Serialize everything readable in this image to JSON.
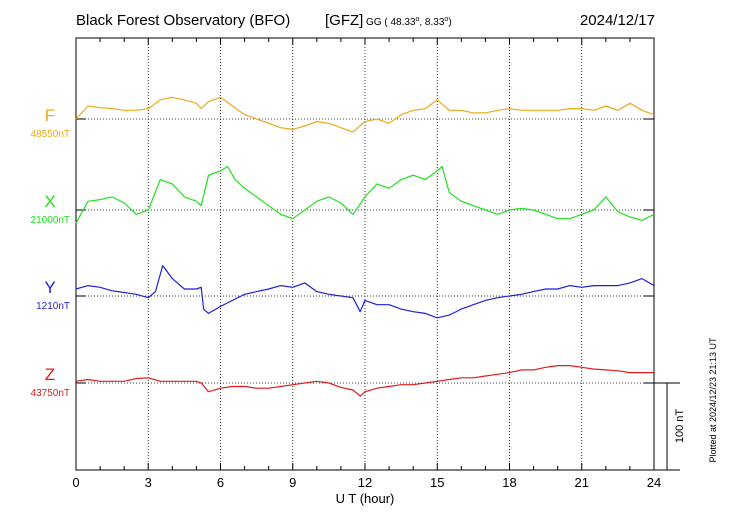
{
  "header": {
    "title": "Black Forest Observatory (BFO)",
    "agency": "[GFZ]",
    "coord_prefix": "GG ( 48.33",
    "coord_sep": ",    8.33",
    "coord_close": ")",
    "degree": "o",
    "date": "2024/12/17"
  },
  "footer": {
    "plotted": "Plotted at 2024/12/23 21:13 UT"
  },
  "chart_data": {
    "type": "line",
    "title": "Black Forest Observatory (BFO) [GFZ]",
    "xlabel": "U T (hour)",
    "xlim": [
      0,
      24
    ],
    "xticks": [
      0,
      3,
      6,
      9,
      12,
      15,
      18,
      21,
      24
    ],
    "xtick_labels": [
      "0",
      "3",
      "6",
      "9",
      "12",
      "15",
      "18",
      "21",
      "24"
    ],
    "grid": true,
    "scale_bar": {
      "value": 100,
      "label": "100 nT"
    },
    "series": [
      {
        "name": "F",
        "label": "F",
        "baseline_label": "48550nT",
        "color": "#f0a81c",
        "baseline": 48550,
        "x": [
          0,
          0.5,
          1,
          1.5,
          2,
          2.5,
          3,
          3.5,
          4,
          4.5,
          5,
          5.2,
          5.5,
          6,
          6.5,
          7,
          7.5,
          8,
          8.5,
          9,
          9.5,
          10,
          10.5,
          11,
          11.5,
          12,
          12.5,
          13,
          13.5,
          14,
          14.5,
          15,
          15.5,
          16,
          16.5,
          17,
          17.5,
          18,
          18.5,
          19,
          19.5,
          20,
          20.5,
          21,
          21.5,
          22,
          22.5,
          23,
          23.5,
          24
        ],
        "y": [
          48550,
          48565,
          48563,
          48562,
          48560,
          48560,
          48562,
          48572,
          48575,
          48572,
          48568,
          48562,
          48570,
          48575,
          48565,
          48555,
          48550,
          48545,
          48540,
          48538,
          48542,
          48547,
          48545,
          48540,
          48535,
          48547,
          48550,
          48545,
          48555,
          48560,
          48562,
          48572,
          48560,
          48560,
          48557,
          48557,
          48560,
          48562,
          48560,
          48560,
          48560,
          48560,
          48562,
          48562,
          48560,
          48565,
          48560,
          48568,
          48560,
          48555
        ]
      },
      {
        "name": "X",
        "label": "X",
        "baseline_label": "21000nT",
        "color": "#1fe01f",
        "baseline": 21000,
        "x": [
          0,
          0.5,
          1,
          1.5,
          2,
          2.5,
          3,
          3.5,
          4,
          4.5,
          5,
          5.2,
          5.5,
          6,
          6.3,
          6.6,
          7,
          7.5,
          8,
          8.5,
          9,
          9.5,
          10,
          10.5,
          11,
          11.5,
          12,
          12.5,
          13,
          13.5,
          14,
          14.5,
          15,
          15.2,
          15.5,
          16,
          16.5,
          17,
          17.5,
          18,
          18.5,
          19,
          19.5,
          20,
          20.5,
          21,
          21.5,
          22,
          22.5,
          23,
          23.5,
          24
        ],
        "y": [
          20985,
          21010,
          21012,
          21015,
          21008,
          20995,
          21000,
          21035,
          21030,
          21015,
          21010,
          21005,
          21040,
          21045,
          21050,
          21035,
          21025,
          21015,
          21005,
          20995,
          20990,
          21000,
          21010,
          21015,
          21008,
          20995,
          21015,
          21030,
          21025,
          21035,
          21040,
          21035,
          21045,
          21050,
          21020,
          21010,
          21005,
          21000,
          20995,
          21000,
          21002,
          21000,
          20995,
          20990,
          20990,
          20995,
          21000,
          21015,
          20998,
          20992,
          20988,
          20995
        ]
      },
      {
        "name": "Y",
        "label": "Y",
        "baseline_label": "1210nT",
        "color": "#1f1fd6",
        "baseline": 1210,
        "x": [
          0,
          0.5,
          1,
          1.5,
          2,
          2.5,
          3,
          3.3,
          3.6,
          4,
          4.5,
          5,
          5.2,
          5.3,
          5.5,
          6,
          6.5,
          7,
          7.5,
          8,
          8.5,
          9,
          9.5,
          10,
          10.5,
          11,
          11.5,
          11.8,
          12,
          12.5,
          13,
          13.5,
          14,
          14.5,
          15,
          15.5,
          16,
          16.5,
          17,
          17.5,
          18,
          18.5,
          19,
          19.5,
          20,
          20.5,
          21,
          21.5,
          22,
          22.5,
          23,
          23.5,
          24
        ],
        "y": [
          1218,
          1222,
          1220,
          1216,
          1214,
          1212,
          1208,
          1215,
          1245,
          1230,
          1218,
          1218,
          1220,
          1195,
          1190,
          1198,
          1205,
          1212,
          1215,
          1218,
          1222,
          1220,
          1225,
          1215,
          1212,
          1210,
          1208,
          1192,
          1205,
          1200,
          1200,
          1195,
          1192,
          1190,
          1185,
          1188,
          1195,
          1200,
          1205,
          1208,
          1210,
          1212,
          1215,
          1218,
          1218,
          1222,
          1220,
          1222,
          1222,
          1222,
          1225,
          1230,
          1222
        ]
      },
      {
        "name": "Z",
        "label": "Z",
        "baseline_label": "43750nT",
        "color": "#e01c1c",
        "baseline": 43750,
        "x": [
          0,
          0.5,
          1,
          1.5,
          2,
          2.5,
          3,
          3.5,
          4,
          4.5,
          5,
          5.2,
          5.5,
          6,
          6.5,
          7,
          7.5,
          8,
          8.5,
          9,
          9.5,
          10,
          10.5,
          11,
          11.5,
          11.8,
          12,
          12.5,
          13,
          13.5,
          14,
          14.5,
          15,
          15.5,
          16,
          16.5,
          17,
          17.5,
          18,
          18.5,
          19,
          19.5,
          20,
          20.5,
          21,
          21.5,
          22,
          22.5,
          23,
          23.5,
          24
        ],
        "y": [
          43752,
          43754,
          43752,
          43752,
          43752,
          43755,
          43756,
          43752,
          43752,
          43752,
          43752,
          43750,
          43740,
          43744,
          43746,
          43746,
          43744,
          43744,
          43746,
          43748,
          43750,
          43752,
          43750,
          43745,
          43742,
          43735,
          43740,
          43744,
          43746,
          43748,
          43748,
          43750,
          43752,
          43754,
          43756,
          43756,
          43758,
          43760,
          43762,
          43765,
          43765,
          43768,
          43770,
          43770,
          43768,
          43766,
          43765,
          43764,
          43762,
          43762,
          43762
        ]
      }
    ]
  }
}
